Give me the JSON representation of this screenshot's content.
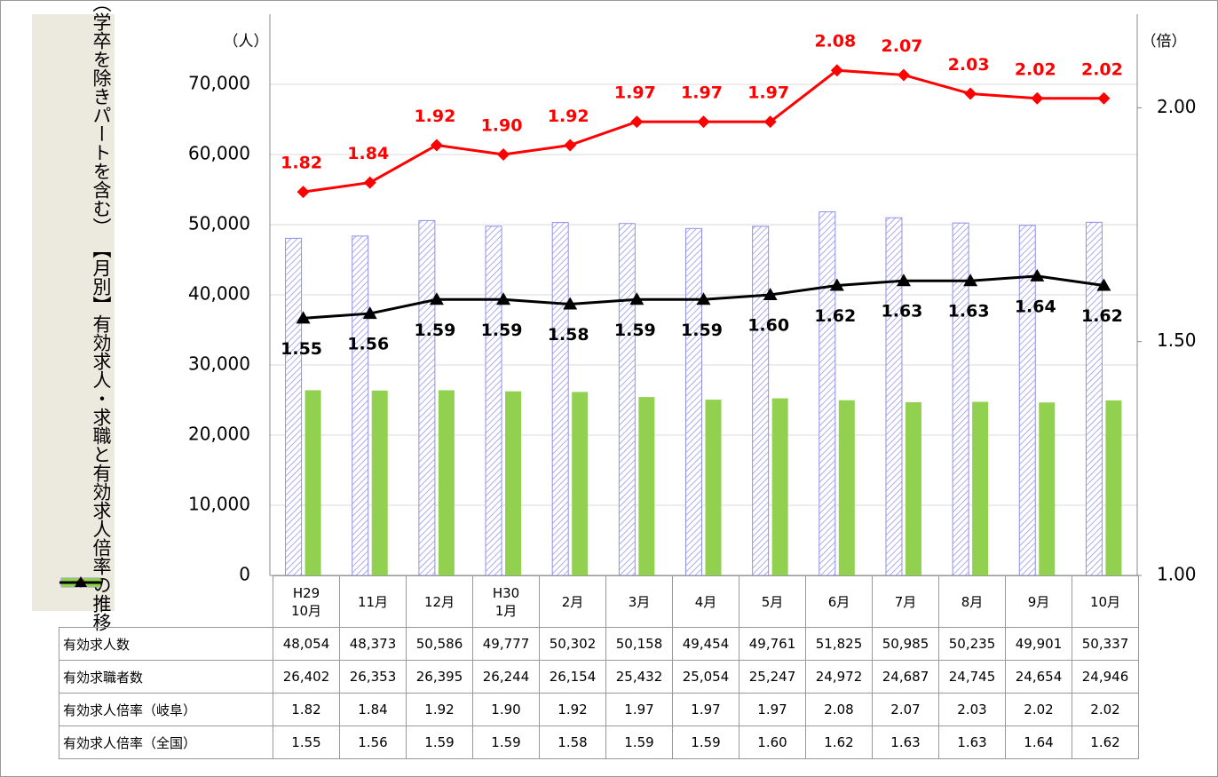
{
  "chart_data": {
    "type": "bar-line",
    "title": "【月別】有効求人・求職と有効求人倍率の推移",
    "subtitle": "（学卒を除きパートを含む）",
    "y_label": "（人）",
    "y2_label": "（倍）",
    "categories": [
      "H29\n10月",
      "11月",
      "12月",
      "H30\n1月",
      "2月",
      "3月",
      "4月",
      "5月",
      "6月",
      "7月",
      "8月",
      "9月",
      "10月"
    ],
    "ylim": [
      0,
      80000
    ],
    "yticks": [
      0,
      {
        "value": 10000,
        "label": "10,000"
      },
      {
        "value": 20000,
        "label": "20,000"
      },
      {
        "value": 30000,
        "label": "30,000"
      },
      {
        "value": 40000,
        "label": "40,000"
      },
      {
        "value": 50000,
        "label": "50,000"
      },
      {
        "value": 60000,
        "label": "60,000"
      },
      {
        "value": 70000,
        "label": "70,000"
      }
    ],
    "y2lim": [
      1.0,
      2.2
    ],
    "y2ticks": [
      {
        "value": 1.0,
        "label": "1.00"
      },
      {
        "value": 1.5,
        "label": "1.50"
      },
      {
        "value": 2.0,
        "label": "2.00"
      }
    ],
    "grid": true,
    "series": [
      {
        "name": "有効求人数",
        "type": "bar",
        "color": "#8f8fea",
        "hatch": true,
        "values": [
          48054,
          48373,
          50586,
          49777,
          50302,
          50158,
          49454,
          49761,
          51825,
          50985,
          50235,
          49901,
          50337
        ],
        "value_labels": [
          "48,054",
          "48,373",
          "50,586",
          "49,777",
          "50,302",
          "50,158",
          "49,454",
          "49,761",
          "51,825",
          "50,985",
          "50,235",
          "49,901",
          "50,337"
        ]
      },
      {
        "name": "有効求職者数",
        "type": "bar",
        "color": "#92d050",
        "values": [
          26402,
          26353,
          26395,
          26244,
          26154,
          25432,
          25054,
          25247,
          24972,
          24687,
          24745,
          24654,
          24946
        ],
        "value_labels": [
          "26,402",
          "26,353",
          "26,395",
          "26,244",
          "26,154",
          "25,432",
          "25,054",
          "25,247",
          "24,972",
          "24,687",
          "24,745",
          "24,654",
          "24,946"
        ]
      },
      {
        "name": "有効求人倍率（岐阜）",
        "type": "line",
        "axis": "y2",
        "color": "#ff0000",
        "marker": "diamond",
        "label_position": "above",
        "values": [
          1.82,
          1.84,
          1.92,
          1.9,
          1.92,
          1.97,
          1.97,
          1.97,
          2.08,
          2.07,
          2.03,
          2.02,
          2.02
        ],
        "value_labels": [
          "1.82",
          "1.84",
          "1.92",
          "1.90",
          "1.92",
          "1.97",
          "1.97",
          "1.97",
          "2.08",
          "2.07",
          "2.03",
          "2.02",
          "2.02"
        ]
      },
      {
        "name": "有効求人倍率（全国）",
        "type": "line",
        "axis": "y2",
        "color": "#000000",
        "marker": "triangle",
        "label_position": "below",
        "values": [
          1.55,
          1.56,
          1.59,
          1.59,
          1.58,
          1.59,
          1.59,
          1.6,
          1.62,
          1.63,
          1.63,
          1.64,
          1.62
        ],
        "value_labels": [
          "1.55",
          "1.56",
          "1.59",
          "1.59",
          "1.58",
          "1.59",
          "1.59",
          "1.60",
          "1.62",
          "1.63",
          "1.63",
          "1.64",
          "1.62"
        ]
      }
    ]
  }
}
